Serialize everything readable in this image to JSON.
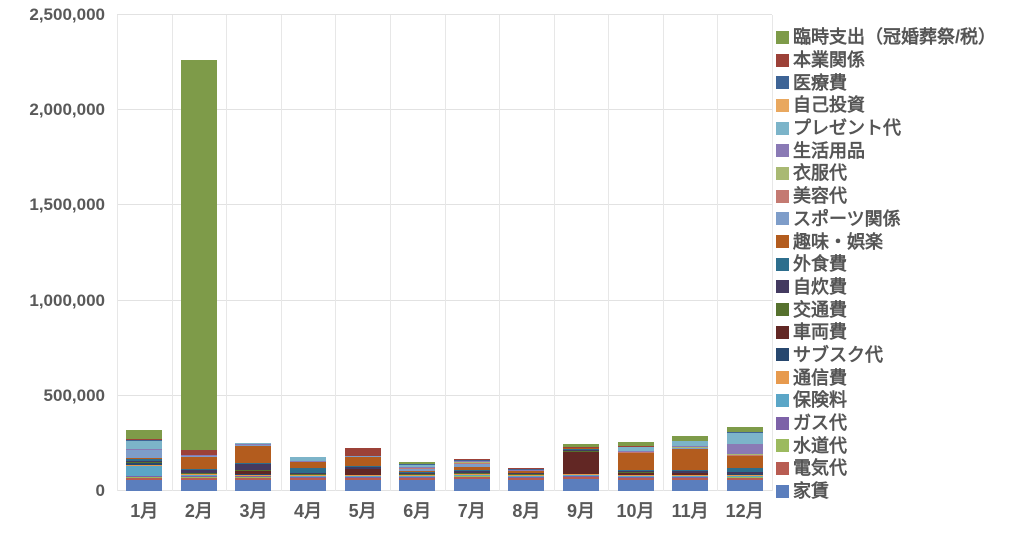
{
  "chart_data": {
    "type": "bar",
    "stacked": true,
    "title": "",
    "xlabel": "",
    "ylabel": "",
    "categories": [
      "1月",
      "2月",
      "3月",
      "4月",
      "5月",
      "6月",
      "7月",
      "8月",
      "9月",
      "10月",
      "11月",
      "12月"
    ],
    "y_axis": {
      "min": 0,
      "max": 2500000,
      "tick_interval": 500000,
      "tick_labels": [
        "0",
        "500,000",
        "1,000,000",
        "1,500,000",
        "2,000,000",
        "2,500,000"
      ]
    },
    "grid": "horizontal-and-vertical-category-lines",
    "legend_position": "right",
    "legend_order": "top-to-bottom is reverse of stacking (top stack segment listed first)",
    "series": [
      {
        "name": "家賃",
        "color": "#5b7ebd",
        "values": [
          60000,
          60000,
          60000,
          60000,
          60000,
          60000,
          65000,
          60000,
          65000,
          60000,
          60000,
          60000
        ]
      },
      {
        "name": "電気代",
        "color": "#b85c52",
        "values": [
          8000,
          8000,
          8000,
          6000,
          6000,
          6000,
          8000,
          7000,
          7000,
          6000,
          6000,
          7000
        ]
      },
      {
        "name": "水道代",
        "color": "#9cba5f",
        "values": [
          5000,
          6000,
          5000,
          5000,
          5000,
          5000,
          5000,
          4000,
          4000,
          5000,
          5000,
          5000
        ]
      },
      {
        "name": "ガス代",
        "color": "#7d62a8",
        "values": [
          5000,
          5000,
          4000,
          4000,
          4000,
          3000,
          3000,
          3000,
          3000,
          3000,
          3000,
          4000
        ]
      },
      {
        "name": "保険料",
        "color": "#5ba6c7",
        "values": [
          55000,
          4000,
          4000,
          4000,
          4000,
          4000,
          4000,
          4000,
          4000,
          4000,
          4000,
          4000
        ]
      },
      {
        "name": "通信費",
        "color": "#e79a4e",
        "values": [
          4000,
          4000,
          4000,
          4000,
          4000,
          4000,
          4000,
          4000,
          4000,
          4000,
          4000,
          4000
        ]
      },
      {
        "name": "サブスク代",
        "color": "#27476e",
        "values": [
          12000,
          3000,
          3000,
          3000,
          3000,
          3000,
          3000,
          3000,
          5000,
          5000,
          4000,
          4000
        ]
      },
      {
        "name": "車両費",
        "color": "#622724",
        "values": [
          0,
          0,
          20000,
          0,
          28000,
          0,
          0,
          0,
          115000,
          8000,
          8000,
          0
        ]
      },
      {
        "name": "交通費",
        "color": "#56712e",
        "values": [
          3000,
          4000,
          3000,
          3000,
          3000,
          4000,
          4000,
          3000,
          3000,
          3000,
          3000,
          4000
        ]
      },
      {
        "name": "自炊費",
        "color": "#433a60",
        "values": [
          8000,
          15000,
          30000,
          4000,
          12000,
          6000,
          8000,
          5000,
          5000,
          10000,
          8000,
          6000
        ]
      },
      {
        "name": "外食費",
        "color": "#2d6e8d",
        "values": [
          6000,
          8000,
          5000,
          28000,
          4000,
          5000,
          6000,
          4000,
          4000,
          5000,
          5000,
          25000
        ]
      },
      {
        "name": "趣味・娯楽",
        "color": "#b35c1e",
        "values": [
          8000,
          60000,
          90000,
          30000,
          45000,
          8000,
          15000,
          6000,
          6000,
          85000,
          110000,
          60000
        ]
      },
      {
        "name": "スポーツ関係",
        "color": "#7e9dc9",
        "values": [
          40000,
          5000,
          5000,
          0,
          5000,
          8000,
          20000,
          5000,
          0,
          4000,
          5000,
          4000
        ]
      },
      {
        "name": "美容代",
        "color": "#c47a72",
        "values": [
          0,
          4000,
          0,
          3000,
          4000,
          4000,
          5000,
          0,
          3000,
          4000,
          4000,
          5000
        ]
      },
      {
        "name": "衣服代",
        "color": "#a9b973",
        "values": [
          3000,
          0,
          4000,
          0,
          0,
          4000,
          4000,
          0,
          0,
          0,
          5000,
          5000
        ]
      },
      {
        "name": "生活用品",
        "color": "#8a7ab5",
        "values": [
          6000,
          4000,
          3000,
          3000,
          0,
          4000,
          3000,
          3000,
          0,
          3000,
          4000,
          50000
        ]
      },
      {
        "name": "プレゼント代",
        "color": "#7cb4c9",
        "values": [
          40000,
          0,
          4000,
          20000,
          0,
          8000,
          0,
          0,
          0,
          25000,
          25000,
          60000
        ]
      },
      {
        "name": "自己投資",
        "color": "#e9a85f",
        "values": [
          0,
          0,
          0,
          0,
          0,
          0,
          0,
          0,
          0,
          0,
          0,
          0
        ]
      },
      {
        "name": "医療費",
        "color": "#3e6496",
        "values": [
          3000,
          0,
          0,
          0,
          0,
          5000,
          5000,
          4000,
          0,
          0,
          3000,
          3000
        ]
      },
      {
        "name": "本業関係",
        "color": "#9c4138",
        "values": [
          8000,
          25000,
          0,
          0,
          38000,
          0,
          8000,
          5000,
          5000,
          5000,
          0,
          0
        ]
      },
      {
        "name": "臨時支出（冠婚葬祭/税）",
        "color": "#7e9b49",
        "values": [
          45000,
          2050000,
          3000,
          0,
          0,
          10000,
          0,
          0,
          15000,
          17000,
          25000,
          25000
        ]
      }
    ]
  },
  "style": {
    "axis_text_color": "#595959",
    "legend_text_color": "#555555",
    "gridline_color": "#e2e2e2",
    "background_color": "#ffffff"
  }
}
